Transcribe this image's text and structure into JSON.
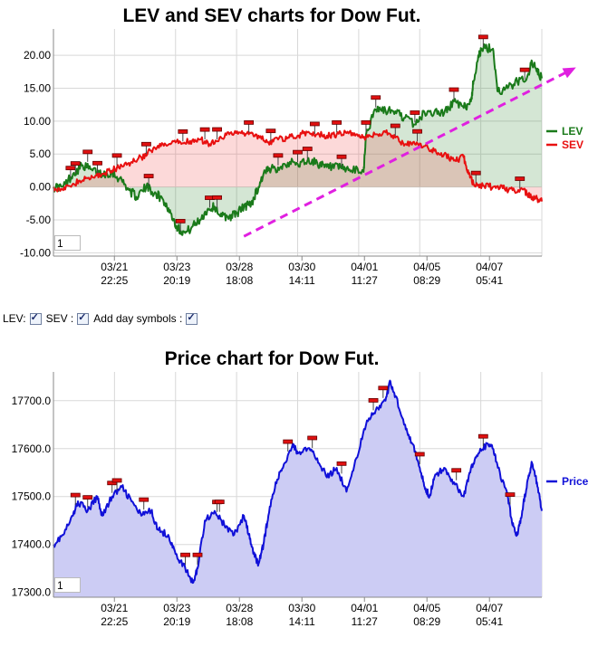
{
  "top_chart": {
    "title": "LEV and SEV charts for Dow Fut.",
    "zoom_value": "1",
    "legend": [
      {
        "label": "LEV",
        "color": "#1a7a1a"
      },
      {
        "label": "SEV",
        "color": "#e81010"
      }
    ]
  },
  "controls": {
    "lev_label": "LEV:",
    "sev_label": "SEV :",
    "day_label": "Add day symbols :"
  },
  "bottom_chart": {
    "title": "Price chart for Dow Fut.",
    "zoom_value": "1",
    "legend": [
      {
        "label": "Price",
        "color": "#1010d8"
      }
    ]
  },
  "chart_data": [
    {
      "type": "line",
      "title": "LEV and SEV charts for Dow Fut.",
      "ylim": [
        -10.5,
        24
      ],
      "y_ticks": [
        20,
        15,
        10,
        5,
        0,
        -5,
        -10
      ],
      "y_tick_labels": [
        "20.00",
        "15.00",
        "10.00",
        "5.00",
        "0.00",
        "-5.00",
        "-10.00"
      ],
      "x_ticks": [
        {
          "t": 0.1248,
          "date": "03/21",
          "time": "22:25"
        },
        {
          "t": 0.2528,
          "date": "03/23",
          "time": "20:19"
        },
        {
          "t": 0.3808,
          "date": "03/28",
          "time": "18:08"
        },
        {
          "t": 0.5088,
          "date": "03/30",
          "time": "14:11"
        },
        {
          "t": 0.6368,
          "date": "04/01",
          "time": "11:27"
        },
        {
          "t": 0.7648,
          "date": "04/05",
          "time": "08:29"
        },
        {
          "t": 0.8928,
          "date": "04/07",
          "time": "05:41"
        }
      ],
      "series": [
        {
          "name": "LEV",
          "color": "#1a7a1a",
          "points": [
            [
              0,
              0
            ],
            [
              0.02,
              0
            ],
            [
              0.04,
              2
            ],
            [
              0.06,
              3.3
            ],
            [
              0.08,
              2.5
            ],
            [
              0.1,
              2
            ],
            [
              0.12,
              2.2
            ],
            [
              0.14,
              1
            ],
            [
              0.155,
              -0.5
            ],
            [
              0.17,
              -1.5
            ],
            [
              0.19,
              0
            ],
            [
              0.21,
              -1
            ],
            [
              0.225,
              -2
            ],
            [
              0.24,
              -4
            ],
            [
              0.255,
              -6.3
            ],
            [
              0.27,
              -7
            ],
            [
              0.285,
              -6
            ],
            [
              0.3,
              -5
            ],
            [
              0.315,
              -3.5
            ],
            [
              0.33,
              -3
            ],
            [
              0.345,
              -4.5
            ],
            [
              0.36,
              -4.5
            ],
            [
              0.375,
              -4
            ],
            [
              0.39,
              -3
            ],
            [
              0.405,
              -2.5
            ],
            [
              0.42,
              0
            ],
            [
              0.43,
              2
            ],
            [
              0.44,
              2.5
            ],
            [
              0.46,
              3
            ],
            [
              0.48,
              3.7
            ],
            [
              0.5,
              3.5
            ],
            [
              0.52,
              4
            ],
            [
              0.54,
              3.7
            ],
            [
              0.555,
              3
            ],
            [
              0.57,
              3
            ],
            [
              0.59,
              2.8
            ],
            [
              0.61,
              2.5
            ],
            [
              0.635,
              2.3
            ],
            [
              0.64,
              8
            ],
            [
              0.66,
              11.8
            ],
            [
              0.68,
              11.6
            ],
            [
              0.7,
              11.5
            ],
            [
              0.72,
              10.5
            ],
            [
              0.74,
              9.5
            ],
            [
              0.76,
              11.3
            ],
            [
              0.78,
              11.4
            ],
            [
              0.8,
              11.2
            ],
            [
              0.82,
              13
            ],
            [
              0.84,
              12
            ],
            [
              0.855,
              13
            ],
            [
              0.86,
              16
            ],
            [
              0.87,
              20
            ],
            [
              0.88,
              21
            ],
            [
              0.9,
              21
            ],
            [
              0.91,
              14.5
            ],
            [
              0.93,
              15
            ],
            [
              0.95,
              16
            ],
            [
              0.97,
              16.7
            ],
            [
              0.98,
              19
            ],
            [
              0.99,
              17.5
            ],
            [
              1,
              16.5
            ]
          ]
        },
        {
          "name": "SEV",
          "color": "#e81010",
          "points": [
            [
              0,
              0
            ],
            [
              0.02,
              -0.5
            ],
            [
              0.04,
              0.5
            ],
            [
              0.06,
              1
            ],
            [
              0.08,
              1.5
            ],
            [
              0.1,
              2
            ],
            [
              0.12,
              2.5
            ],
            [
              0.14,
              3.2
            ],
            [
              0.16,
              3.8
            ],
            [
              0.18,
              4.5
            ],
            [
              0.2,
              5.5
            ],
            [
              0.22,
              6.2
            ],
            [
              0.24,
              6.5
            ],
            [
              0.26,
              6.8
            ],
            [
              0.28,
              7
            ],
            [
              0.3,
              7.2
            ],
            [
              0.32,
              6.5
            ],
            [
              0.34,
              7.5
            ],
            [
              0.36,
              8
            ],
            [
              0.38,
              8.3
            ],
            [
              0.4,
              8
            ],
            [
              0.42,
              7.8
            ],
            [
              0.44,
              6.8
            ],
            [
              0.46,
              7.2
            ],
            [
              0.48,
              7.5
            ],
            [
              0.5,
              7.8
            ],
            [
              0.52,
              8.3
            ],
            [
              0.54,
              8
            ],
            [
              0.56,
              7.8
            ],
            [
              0.58,
              8
            ],
            [
              0.6,
              8.2
            ],
            [
              0.62,
              8
            ],
            [
              0.64,
              7.5
            ],
            [
              0.66,
              8
            ],
            [
              0.68,
              8.3
            ],
            [
              0.7,
              7.5
            ],
            [
              0.72,
              6.5
            ],
            [
              0.74,
              6.5
            ],
            [
              0.76,
              6.2
            ],
            [
              0.78,
              5.5
            ],
            [
              0.8,
              5
            ],
            [
              0.82,
              4
            ],
            [
              0.84,
              4.5
            ],
            [
              0.85,
              2
            ],
            [
              0.86,
              0.5
            ],
            [
              0.88,
              0.2
            ],
            [
              0.9,
              0
            ],
            [
              0.92,
              -0.2
            ],
            [
              0.94,
              -0.5
            ],
            [
              0.96,
              -0.3
            ],
            [
              0.97,
              -1
            ],
            [
              0.98,
              -1.5
            ],
            [
              0.99,
              -1.8
            ],
            [
              1,
              -2.2
            ]
          ]
        }
      ],
      "markers": {
        "LEV": [
          0.035,
          0.045,
          0.07,
          0.09,
          0.195,
          0.26,
          0.32,
          0.335,
          0.46,
          0.5,
          0.52,
          0.59,
          0.64,
          0.66,
          0.74,
          0.82,
          0.88,
          0.965
        ],
        "SEV": [
          0.13,
          0.19,
          0.265,
          0.31,
          0.335,
          0.4,
          0.445,
          0.535,
          0.58,
          0.7,
          0.745,
          0.865,
          0.955
        ]
      },
      "trend_arrow": {
        "color": "#e020e0",
        "from": [
          0.39,
          -7.5
        ],
        "to": [
          1.07,
          18
        ]
      }
    },
    {
      "type": "area",
      "title": "Price chart for Dow Fut.",
      "ylim": [
        17290,
        17760
      ],
      "y_ticks": [
        17700,
        17600,
        17500,
        17400,
        17300
      ],
      "y_tick_labels": [
        "17700.0",
        "17600.0",
        "17500.0",
        "17400.0",
        "17300.0"
      ],
      "x_ticks": [
        {
          "t": 0.1248,
          "date": "03/21",
          "time": "22:25"
        },
        {
          "t": 0.2528,
          "date": "03/23",
          "time": "20:19"
        },
        {
          "t": 0.3808,
          "date": "03/28",
          "time": "18:08"
        },
        {
          "t": 0.5088,
          "date": "03/30",
          "time": "14:11"
        },
        {
          "t": 0.6368,
          "date": "04/01",
          "time": "11:27"
        },
        {
          "t": 0.7648,
          "date": "04/05",
          "time": "08:29"
        },
        {
          "t": 0.8928,
          "date": "04/07",
          "time": "05:41"
        }
      ],
      "series": [
        {
          "name": "Price",
          "color": "#1010d8",
          "fill": "#ccccf4",
          "points": [
            [
              0,
              17400
            ],
            [
              0.02,
              17420
            ],
            [
              0.04,
              17460
            ],
            [
              0.05,
              17490
            ],
            [
              0.07,
              17470
            ],
            [
              0.09,
              17500
            ],
            [
              0.1,
              17460
            ],
            [
              0.12,
              17500
            ],
            [
              0.14,
              17520
            ],
            [
              0.16,
              17490
            ],
            [
              0.18,
              17460
            ],
            [
              0.2,
              17470
            ],
            [
              0.215,
              17430
            ],
            [
              0.235,
              17420
            ],
            [
              0.25,
              17380
            ],
            [
              0.27,
              17350
            ],
            [
              0.285,
              17320
            ],
            [
              0.295,
              17350
            ],
            [
              0.31,
              17450
            ],
            [
              0.33,
              17470
            ],
            [
              0.35,
              17440
            ],
            [
              0.37,
              17420
            ],
            [
              0.39,
              17460
            ],
            [
              0.4,
              17420
            ],
            [
              0.41,
              17380
            ],
            [
              0.42,
              17360
            ],
            [
              0.43,
              17400
            ],
            [
              0.44,
              17460
            ],
            [
              0.455,
              17530
            ],
            [
              0.47,
              17560
            ],
            [
              0.49,
              17610
            ],
            [
              0.5,
              17590
            ],
            [
              0.52,
              17600
            ],
            [
              0.54,
              17580
            ],
            [
              0.56,
              17540
            ],
            [
              0.58,
              17560
            ],
            [
              0.6,
              17510
            ],
            [
              0.62,
              17580
            ],
            [
              0.64,
              17650
            ],
            [
              0.66,
              17680
            ],
            [
              0.68,
              17700
            ],
            [
              0.69,
              17740
            ],
            [
              0.7,
              17710
            ],
            [
              0.72,
              17650
            ],
            [
              0.735,
              17610
            ],
            [
              0.75,
              17560
            ],
            [
              0.76,
              17520
            ],
            [
              0.77,
              17500
            ],
            [
              0.78,
              17540
            ],
            [
              0.8,
              17560
            ],
            [
              0.82,
              17530
            ],
            [
              0.84,
              17500
            ],
            [
              0.855,
              17560
            ],
            [
              0.87,
              17590
            ],
            [
              0.89,
              17610
            ],
            [
              0.9,
              17600
            ],
            [
              0.91,
              17560
            ],
            [
              0.93,
              17500
            ],
            [
              0.94,
              17440
            ],
            [
              0.95,
              17420
            ],
            [
              0.96,
              17470
            ],
            [
              0.97,
              17530
            ],
            [
              0.98,
              17570
            ],
            [
              0.99,
              17530
            ],
            [
              1,
              17470
            ]
          ]
        }
      ],
      "markers": [
        0.045,
        0.07,
        0.12,
        0.13,
        0.185,
        0.27,
        0.295,
        0.335,
        0.34,
        0.48,
        0.53,
        0.59,
        0.655,
        0.675,
        0.75,
        0.825,
        0.88,
        0.935
      ]
    }
  ]
}
